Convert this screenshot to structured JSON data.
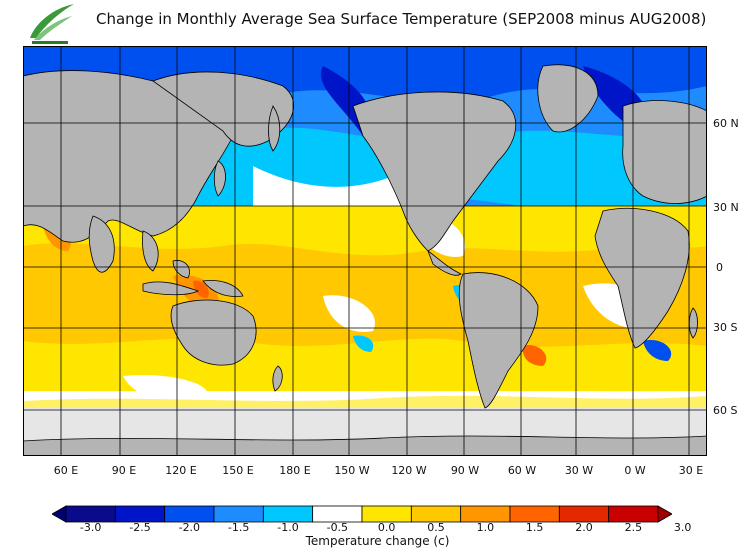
{
  "title": "Change in Monthly Average Sea Surface Temperature (SEP2008 minus AUG2008)",
  "latitude_labels": [
    "60 N",
    "30 N",
    "0",
    "30 S",
    "60 S"
  ],
  "longitude_labels": [
    "60 E",
    "90 E",
    "120 E",
    "150 E",
    "180 E",
    "150 W",
    "120 W",
    "90 W",
    "60 W",
    "30 W",
    "0 W",
    "30 E"
  ],
  "colorbar": {
    "title": "Temperature change  (c)",
    "tick_labels": [
      "-3.0",
      "-2.5",
      "-2.0",
      "-1.5",
      "-1.0",
      "-0.5",
      "0.0",
      "0.5",
      "1.0",
      "1.5",
      "2.0",
      "2.5",
      "3.0"
    ],
    "colors": [
      "#0a0a8c",
      "#0014c8",
      "#0050f0",
      "#1e8cff",
      "#00c8ff",
      "#ffffff",
      "#ffe600",
      "#ffc800",
      "#ff9600",
      "#ff6400",
      "#e62800",
      "#c80000"
    ],
    "under_color": "#00006e",
    "over_color": "#a00000"
  },
  "colors": {
    "land": "#b4b4b4",
    "ice": "#e6e6e6",
    "grid": "#000000"
  }
}
